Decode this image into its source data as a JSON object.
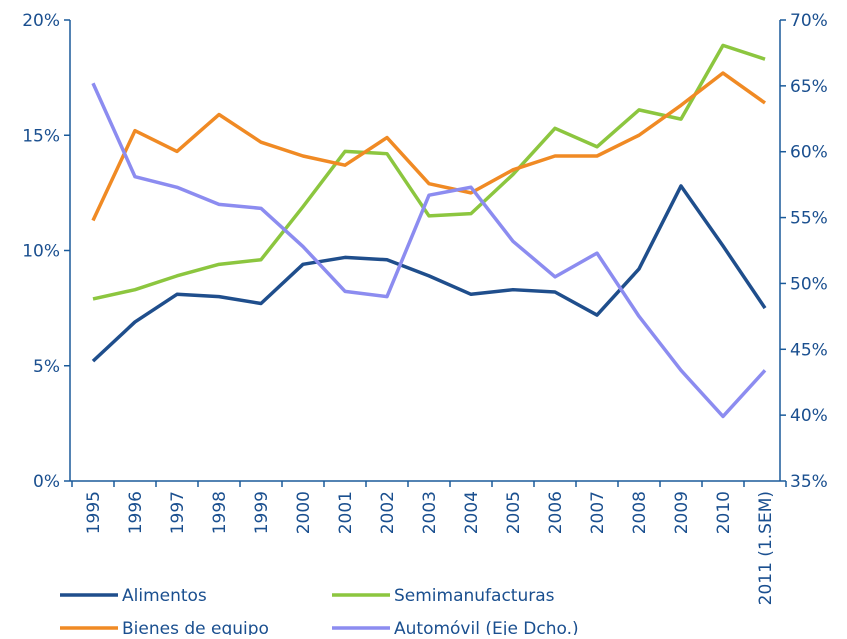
{
  "chart_data": {
    "type": "line",
    "categories": [
      "1995",
      "1996",
      "1997",
      "1998",
      "1999",
      "2000",
      "2001",
      "2002",
      "2003",
      "2004",
      "2005",
      "2006",
      "2007",
      "2008",
      "2009",
      "2010",
      "2011 (1.SEM)"
    ],
    "ylim": [
      0,
      20
    ],
    "yticks": [
      {
        "value": 0,
        "label": "0%"
      },
      {
        "value": 5,
        "label": "5%"
      },
      {
        "value": 10,
        "label": "10%"
      },
      {
        "value": 15,
        "label": "15%"
      },
      {
        "value": 20,
        "label": "20%"
      }
    ],
    "y2lim": [
      35,
      70
    ],
    "y2ticks": [
      {
        "value": 35,
        "label": "35%"
      },
      {
        "value": 40,
        "label": "40%"
      },
      {
        "value": 45,
        "label": "45%"
      },
      {
        "value": 50,
        "label": "50%"
      },
      {
        "value": 55,
        "label": "55%"
      },
      {
        "value": 60,
        "label": "60%"
      },
      {
        "value": 65,
        "label": "65%"
      },
      {
        "value": 70,
        "label": "70%"
      }
    ],
    "series": [
      {
        "name": "Alimentos",
        "color": "#1f4e8c",
        "values": [
          5.2,
          6.9,
          8.1,
          8.0,
          7.7,
          9.4,
          9.7,
          9.6,
          8.9,
          8.1,
          8.3,
          8.2,
          7.2,
          9.2,
          12.8,
          10.2,
          7.5
        ]
      },
      {
        "name": "Semimanufacturas",
        "color": "#8cc63f",
        "values": [
          7.9,
          8.3,
          8.9,
          9.4,
          9.6,
          11.9,
          14.3,
          14.2,
          11.5,
          11.6,
          13.3,
          15.3,
          14.5,
          16.1,
          15.7,
          18.9,
          18.3
        ]
      },
      {
        "name": "Bienes de equipo",
        "color": "#f08a24",
        "values": [
          11.3,
          15.2,
          14.3,
          15.9,
          14.7,
          14.1,
          13.7,
          14.9,
          12.9,
          12.5,
          13.5,
          14.1,
          14.1,
          15.0,
          16.3,
          17.7,
          16.4
        ]
      },
      {
        "name": "Automóvil (Eje Dcho.)",
        "color": "#8c8cf0",
        "axis": "y2",
        "values": [
          65.2,
          58.1,
          57.3,
          56.0,
          55.7,
          52.8,
          49.4,
          49.0,
          56.7,
          57.3,
          53.2,
          50.5,
          52.3,
          47.5,
          43.4,
          39.9,
          43.4
        ]
      }
    ]
  }
}
